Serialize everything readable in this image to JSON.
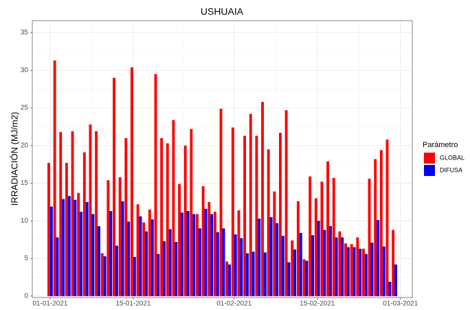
{
  "chart_data": {
    "type": "bar",
    "title": "USHUAIA",
    "y_label": "IRRADIACIÓN (MJ/m2)",
    "legend_title": "Parámetro",
    "x": [
      "01-01-2021",
      "02-01-2021",
      "03-01-2021",
      "04-01-2021",
      "05-01-2021",
      "06-01-2021",
      "07-01-2021",
      "08-01-2021",
      "09-01-2021",
      "10-01-2021",
      "11-01-2021",
      "12-01-2021",
      "13-01-2021",
      "14-01-2021",
      "15-01-2021",
      "16-01-2021",
      "17-01-2021",
      "18-01-2021",
      "19-01-2021",
      "20-01-2021",
      "21-01-2021",
      "22-01-2021",
      "23-01-2021",
      "24-01-2021",
      "25-01-2021",
      "26-01-2021",
      "27-01-2021",
      "28-01-2021",
      "29-01-2021",
      "30-01-2021",
      "31-01-2021",
      "01-02-2021",
      "02-02-2021",
      "03-02-2021",
      "04-02-2021",
      "05-02-2021",
      "06-02-2021",
      "07-02-2021",
      "08-02-2021",
      "09-02-2021",
      "10-02-2021",
      "11-02-2021",
      "12-02-2021",
      "13-02-2021",
      "14-02-2021",
      "15-02-2021",
      "16-02-2021",
      "17-02-2021",
      "18-02-2021",
      "19-02-2021",
      "20-02-2021",
      "21-02-2021",
      "22-02-2021",
      "23-02-2021",
      "24-02-2021",
      "25-02-2021",
      "26-02-2021",
      "27-02-2021",
      "28-02-2021"
    ],
    "series": [
      {
        "name": "GLOBAL",
        "color": "#ff0000",
        "values": [
          17.7,
          31.3,
          21.8,
          17.7,
          21.9,
          13.7,
          19.1,
          22.8,
          21.9,
          5.7,
          15.4,
          29.0,
          15.8,
          21.0,
          30.4,
          12.2,
          9.8,
          11.5,
          29.5,
          21.0,
          20.3,
          23.4,
          14.9,
          20.0,
          22.2,
          10.9,
          14.6,
          12.5,
          11.2,
          24.9,
          4.6,
          22.4,
          11.4,
          21.3,
          24.2,
          21.3,
          25.8,
          19.5,
          13.9,
          21.7,
          24.7,
          7.4,
          12.6,
          4.9,
          15.9,
          13.0,
          15.2,
          17.9,
          15.7,
          8.6,
          7.0,
          6.9,
          7.8,
          6.3,
          15.6,
          18.2,
          19.4,
          20.8,
          8.8
        ]
      },
      {
        "name": "DIFUSA",
        "color": "#0000ff",
        "values": [
          11.9,
          7.8,
          12.9,
          13.3,
          12.8,
          11.2,
          12.5,
          10.9,
          9.3,
          5.3,
          11.3,
          6.7,
          12.6,
          9.9,
          5.2,
          10.6,
          8.6,
          10.2,
          5.6,
          7.3,
          8.9,
          7.2,
          11.1,
          11.3,
          10.9,
          9.0,
          11.6,
          10.9,
          8.5,
          9.0,
          4.2,
          8.2,
          7.7,
          5.7,
          5.9,
          10.3,
          5.8,
          10.5,
          9.7,
          8.0,
          4.5,
          6.2,
          8.4,
          4.7,
          8.1,
          10.0,
          8.8,
          9.3,
          7.8,
          7.8,
          6.5,
          6.5,
          6.3,
          5.6,
          7.1,
          10.1,
          6.6,
          1.9,
          4.2
        ]
      }
    ],
    "xlim": [
      "29-12-2020",
      "03-03-2021"
    ],
    "xticks": [
      "01-01-2021",
      "15-01-2021",
      "01-02-2021",
      "15-02-2021",
      "01-03-2021"
    ],
    "ylim": [
      -0.2,
      36.6
    ],
    "yticks": [
      0,
      5,
      10,
      15,
      20,
      25,
      30,
      35
    ],
    "grid": true,
    "legend": "right"
  }
}
